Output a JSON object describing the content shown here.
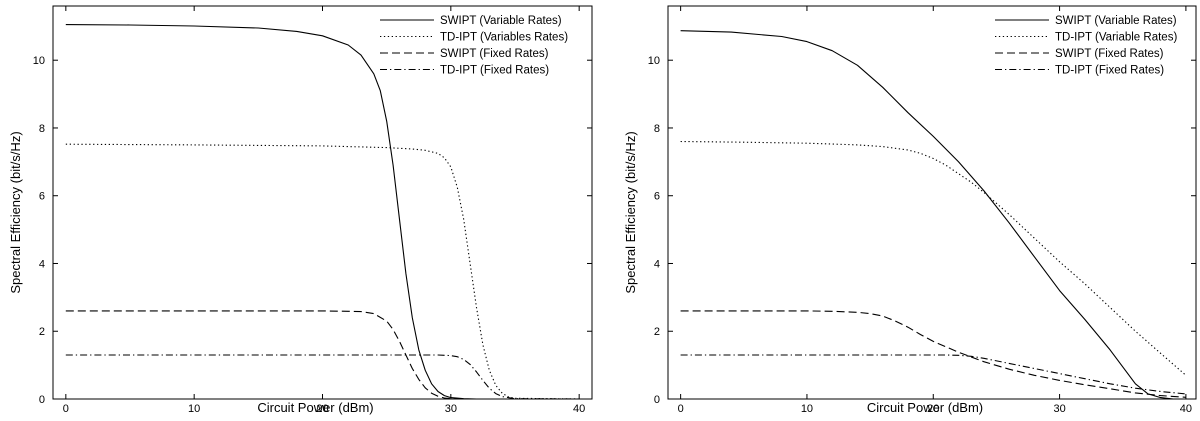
{
  "chart_data": [
    {
      "type": "line",
      "title": "",
      "xlabel": "Circuit Power (dBm)",
      "ylabel": "Spectral Efficiency (bit/s/Hz)",
      "xlim": [
        -1,
        41
      ],
      "ylim": [
        0,
        11.6
      ],
      "xticks": [
        0,
        10,
        20,
        30,
        40
      ],
      "yticks": [
        0,
        2,
        4,
        6,
        8,
        10
      ],
      "grid": false,
      "legend_position": "top-right",
      "series": [
        {
          "name": "SWIPT (Variable Rates)",
          "style": "solid",
          "x": [
            0,
            5,
            10,
            15,
            18,
            20,
            22,
            23,
            24,
            24.5,
            25,
            25.5,
            26,
            26.5,
            27,
            27.5,
            28,
            28.5,
            29,
            29.5,
            30,
            31,
            32,
            40
          ],
          "y": [
            11.05,
            11.04,
            11.01,
            10.95,
            10.85,
            10.72,
            10.45,
            10.15,
            9.6,
            9.1,
            8.2,
            6.9,
            5.3,
            3.7,
            2.4,
            1.45,
            0.85,
            0.45,
            0.22,
            0.1,
            0.04,
            0.01,
            0.0,
            0.0
          ]
        },
        {
          "name": "TD-IPT (Variables Rates)",
          "style": "dotted",
          "x": [
            0,
            10,
            20,
            25,
            27,
            28,
            29,
            29.5,
            30,
            30.5,
            31,
            31.5,
            32,
            32.5,
            33,
            33.5,
            34,
            34.5,
            35,
            40
          ],
          "y": [
            7.52,
            7.5,
            7.47,
            7.42,
            7.38,
            7.34,
            7.25,
            7.12,
            6.85,
            6.25,
            5.3,
            4.0,
            2.7,
            1.6,
            0.85,
            0.4,
            0.17,
            0.06,
            0.02,
            0.0
          ]
        },
        {
          "name": "SWIPT (Fixed Rates)",
          "style": "dashed",
          "x": [
            0,
            10,
            20,
            22,
            23,
            24,
            25,
            25.5,
            26,
            26.5,
            27,
            27.5,
            28,
            28.5,
            29,
            29.5,
            30,
            31,
            40
          ],
          "y": [
            2.6,
            2.6,
            2.6,
            2.59,
            2.58,
            2.52,
            2.3,
            2.05,
            1.7,
            1.3,
            0.9,
            0.58,
            0.33,
            0.17,
            0.08,
            0.03,
            0.01,
            0.0,
            0.0
          ]
        },
        {
          "name": "TD-IPT (Fixed Rates)",
          "style": "dashdot",
          "x": [
            0,
            10,
            20,
            25,
            28,
            29,
            30,
            30.5,
            31,
            31.5,
            32,
            32.5,
            33,
            33.5,
            34,
            35,
            40
          ],
          "y": [
            1.3,
            1.3,
            1.3,
            1.3,
            1.3,
            1.3,
            1.28,
            1.25,
            1.17,
            1.02,
            0.8,
            0.55,
            0.32,
            0.16,
            0.07,
            0.01,
            0.0
          ]
        }
      ]
    },
    {
      "type": "line",
      "title": "",
      "xlabel": "Circuit Power (dBm)",
      "ylabel": "Spectral Efficiency (bit/s/Hz)",
      "xlim": [
        -1,
        40.8
      ],
      "ylim": [
        0,
        11.6
      ],
      "xticks": [
        0,
        10,
        20,
        30,
        40
      ],
      "yticks": [
        0,
        2,
        4,
        6,
        8,
        10
      ],
      "grid": false,
      "legend_position": "top-right",
      "series": [
        {
          "name": "SWIPT (Variable Rates)",
          "style": "solid",
          "x": [
            0,
            4,
            8,
            10,
            12,
            14,
            16,
            18,
            20,
            22,
            24,
            26,
            28,
            30,
            32,
            34,
            35,
            36,
            37,
            38,
            39,
            40
          ],
          "y": [
            10.87,
            10.83,
            10.7,
            10.55,
            10.28,
            9.85,
            9.2,
            8.45,
            7.75,
            7.0,
            6.15,
            5.2,
            4.2,
            3.2,
            2.35,
            1.45,
            0.95,
            0.45,
            0.15,
            0.04,
            0.0,
            0.0
          ]
        },
        {
          "name": "TD-IPT (Variable Rates)",
          "style": "dotted",
          "x": [
            0,
            5,
            10,
            14,
            16,
            18,
            19,
            20,
            21,
            22,
            23,
            24,
            26,
            28,
            30,
            32,
            34,
            36,
            38,
            40
          ],
          "y": [
            7.6,
            7.58,
            7.55,
            7.5,
            7.45,
            7.35,
            7.25,
            7.1,
            6.9,
            6.65,
            6.4,
            6.1,
            5.45,
            4.75,
            4.05,
            3.4,
            2.7,
            2.0,
            1.35,
            0.7
          ]
        },
        {
          "name": "SWIPT (Fixed Rates)",
          "style": "dashed",
          "x": [
            0,
            5,
            10,
            12,
            14,
            15,
            16,
            17,
            18,
            19,
            20,
            22,
            24,
            26,
            28,
            30,
            32,
            34,
            36,
            38,
            40
          ],
          "y": [
            2.6,
            2.6,
            2.6,
            2.59,
            2.56,
            2.52,
            2.45,
            2.3,
            2.12,
            1.9,
            1.7,
            1.38,
            1.1,
            0.88,
            0.7,
            0.55,
            0.42,
            0.3,
            0.18,
            0.1,
            0.05
          ]
        },
        {
          "name": "TD-IPT (Fixed Rates)",
          "style": "dashdot",
          "x": [
            0,
            10,
            18,
            20,
            21,
            22,
            23,
            24,
            26,
            28,
            30,
            32,
            34,
            36,
            38,
            40
          ],
          "y": [
            1.3,
            1.3,
            1.3,
            1.3,
            1.3,
            1.29,
            1.26,
            1.2,
            1.05,
            0.9,
            0.75,
            0.6,
            0.45,
            0.32,
            0.22,
            0.15
          ]
        }
      ]
    }
  ]
}
